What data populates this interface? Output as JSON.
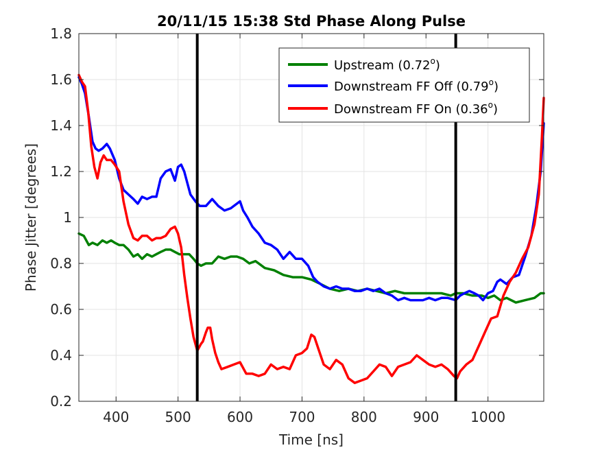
{
  "chart_data": {
    "type": "line",
    "title": "20/11/15 15:38 Std Phase Along Pulse",
    "xlabel": "Time [ns]",
    "ylabel": "Phase Jitter [degrees]",
    "xlim": [
      340,
      1090
    ],
    "ylim": [
      0.2,
      1.8
    ],
    "xticks": [
      400,
      500,
      600,
      700,
      800,
      900,
      1000
    ],
    "yticks": [
      0.2,
      0.4,
      0.6,
      0.8,
      1,
      1.2,
      1.4,
      1.6,
      1.8
    ],
    "xtick_labels": [
      "400",
      "500",
      "600",
      "700",
      "800",
      "900",
      "1000"
    ],
    "ytick_labels": [
      "0.2",
      "0.4",
      "0.6",
      "0.8",
      "1",
      "1.2",
      "1.4",
      "1.6",
      "1.8"
    ],
    "grid": true,
    "legend_position": "top-right",
    "vertical_lines": [
      {
        "x": 531,
        "color": "#000000"
      },
      {
        "x": 948,
        "color": "#000000"
      }
    ],
    "series": [
      {
        "name": "Upstream (0.72",
        "name_sup": "o",
        "name_close": ")",
        "color": "#008000",
        "x": [
          340,
          348,
          356,
          362,
          370,
          378,
          385,
          392,
          398,
          405,
          412,
          420,
          428,
          435,
          442,
          450,
          458,
          465,
          472,
          480,
          488,
          495,
          502,
          510,
          518,
          525,
          531,
          537,
          545,
          555,
          565,
          575,
          585,
          595,
          605,
          615,
          625,
          640,
          655,
          670,
          685,
          700,
          715,
          730,
          745,
          760,
          775,
          790,
          805,
          820,
          835,
          850,
          865,
          880,
          895,
          910,
          925,
          940,
          948,
          960,
          975,
          990,
          1000,
          1010,
          1020,
          1030,
          1045,
          1060,
          1075,
          1085,
          1090
        ],
        "values": [
          0.93,
          0.92,
          0.88,
          0.89,
          0.88,
          0.9,
          0.89,
          0.9,
          0.89,
          0.88,
          0.88,
          0.86,
          0.83,
          0.84,
          0.82,
          0.84,
          0.83,
          0.84,
          0.85,
          0.86,
          0.86,
          0.85,
          0.84,
          0.84,
          0.84,
          0.82,
          0.8,
          0.79,
          0.8,
          0.8,
          0.83,
          0.82,
          0.83,
          0.83,
          0.82,
          0.8,
          0.81,
          0.78,
          0.77,
          0.75,
          0.74,
          0.74,
          0.73,
          0.71,
          0.69,
          0.68,
          0.69,
          0.68,
          0.69,
          0.68,
          0.67,
          0.68,
          0.67,
          0.67,
          0.67,
          0.67,
          0.67,
          0.66,
          0.67,
          0.67,
          0.66,
          0.66,
          0.65,
          0.66,
          0.64,
          0.65,
          0.63,
          0.64,
          0.65,
          0.67,
          0.67
        ]
      },
      {
        "name": "Downstream FF Off (0.79",
        "name_sup": "o",
        "name_close": ")",
        "color": "#0000ff",
        "x": [
          340,
          345,
          350,
          356,
          362,
          367,
          372,
          378,
          385,
          390,
          398,
          405,
          412,
          420,
          428,
          435,
          442,
          450,
          458,
          465,
          472,
          480,
          488,
          495,
          500,
          505,
          510,
          515,
          520,
          528,
          535,
          545,
          555,
          565,
          575,
          585,
          595,
          600,
          605,
          612,
          620,
          630,
          640,
          650,
          660,
          670,
          680,
          690,
          700,
          710,
          718,
          725,
          735,
          745,
          755,
          765,
          775,
          785,
          795,
          805,
          815,
          825,
          835,
          845,
          855,
          865,
          875,
          885,
          895,
          905,
          915,
          925,
          935,
          948,
          955,
          962,
          970,
          978,
          985,
          992,
          1000,
          1008,
          1015,
          1020,
          1030,
          1040,
          1050,
          1060,
          1070,
          1078,
          1085,
          1090
        ],
        "values": [
          1.61,
          1.58,
          1.54,
          1.44,
          1.33,
          1.3,
          1.29,
          1.3,
          1.32,
          1.3,
          1.25,
          1.17,
          1.12,
          1.1,
          1.08,
          1.06,
          1.09,
          1.08,
          1.09,
          1.09,
          1.17,
          1.2,
          1.21,
          1.16,
          1.22,
          1.23,
          1.2,
          1.15,
          1.1,
          1.07,
          1.05,
          1.05,
          1.08,
          1.05,
          1.03,
          1.04,
          1.06,
          1.07,
          1.03,
          1.0,
          0.96,
          0.93,
          0.89,
          0.88,
          0.86,
          0.82,
          0.85,
          0.82,
          0.82,
          0.79,
          0.74,
          0.72,
          0.7,
          0.69,
          0.7,
          0.69,
          0.69,
          0.68,
          0.68,
          0.69,
          0.68,
          0.69,
          0.67,
          0.66,
          0.64,
          0.65,
          0.64,
          0.64,
          0.64,
          0.65,
          0.64,
          0.65,
          0.65,
          0.64,
          0.66,
          0.67,
          0.68,
          0.67,
          0.66,
          0.64,
          0.67,
          0.68,
          0.72,
          0.73,
          0.71,
          0.74,
          0.75,
          0.83,
          0.92,
          1.05,
          1.2,
          1.41
        ]
      },
      {
        "name": "Downstream FF On (0.36",
        "name_sup": "o",
        "name_close": ")",
        "color": "#ff0000",
        "x": [
          340,
          345,
          350,
          355,
          360,
          365,
          370,
          375,
          380,
          385,
          392,
          398,
          405,
          412,
          420,
          428,
          435,
          442,
          450,
          458,
          465,
          472,
          480,
          488,
          495,
          500,
          505,
          510,
          515,
          520,
          525,
          531,
          537,
          540,
          545,
          548,
          552,
          555,
          560,
          565,
          570,
          580,
          590,
          600,
          610,
          620,
          630,
          640,
          650,
          660,
          670,
          680,
          690,
          700,
          708,
          715,
          720,
          725,
          735,
          745,
          755,
          765,
          775,
          785,
          795,
          805,
          815,
          825,
          835,
          845,
          855,
          865,
          875,
          885,
          895,
          905,
          915,
          925,
          935,
          945,
          950,
          955,
          965,
          975,
          985,
          995,
          1005,
          1015,
          1025,
          1035,
          1045,
          1055,
          1065,
          1075,
          1082,
          1087,
          1090
        ],
        "values": [
          1.62,
          1.59,
          1.57,
          1.46,
          1.31,
          1.22,
          1.17,
          1.24,
          1.27,
          1.25,
          1.25,
          1.23,
          1.2,
          1.07,
          0.97,
          0.91,
          0.9,
          0.92,
          0.92,
          0.9,
          0.91,
          0.91,
          0.92,
          0.95,
          0.96,
          0.93,
          0.87,
          0.75,
          0.65,
          0.56,
          0.48,
          0.42,
          0.45,
          0.46,
          0.5,
          0.52,
          0.52,
          0.47,
          0.41,
          0.37,
          0.34,
          0.35,
          0.36,
          0.37,
          0.32,
          0.32,
          0.31,
          0.32,
          0.36,
          0.34,
          0.35,
          0.34,
          0.4,
          0.41,
          0.43,
          0.49,
          0.48,
          0.44,
          0.36,
          0.34,
          0.38,
          0.36,
          0.3,
          0.28,
          0.29,
          0.3,
          0.33,
          0.36,
          0.35,
          0.31,
          0.35,
          0.36,
          0.37,
          0.4,
          0.38,
          0.36,
          0.35,
          0.36,
          0.34,
          0.31,
          0.3,
          0.33,
          0.36,
          0.38,
          0.44,
          0.5,
          0.56,
          0.57,
          0.66,
          0.72,
          0.76,
          0.82,
          0.87,
          0.97,
          1.1,
          1.35,
          1.52
        ]
      }
    ]
  }
}
